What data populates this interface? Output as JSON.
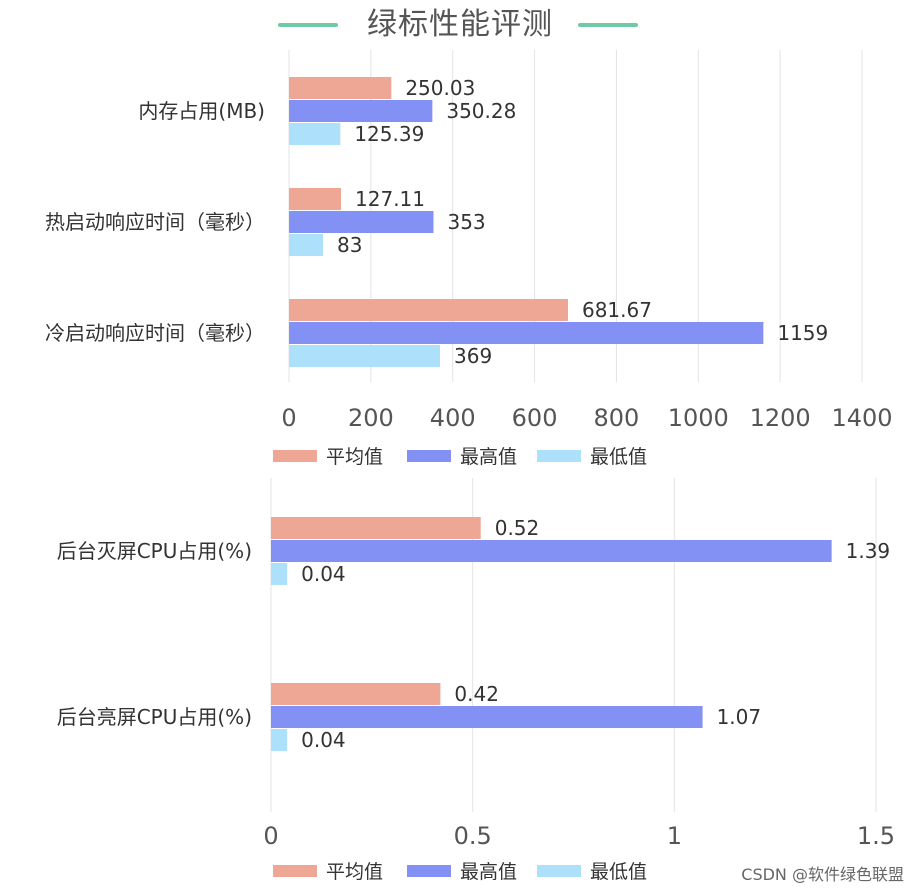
{
  "title": "绿标性能评测",
  "colors": {
    "title_accent": "#6fcaa6",
    "avg": "#efa795",
    "max": "#8390f4",
    "min": "#ade0fa",
    "grid": "#e3e3e3",
    "text": "#333333",
    "tick": "#555555"
  },
  "chart_data": [
    {
      "type": "bar",
      "orientation": "horizontal",
      "categories": [
        "内存占用(MB)",
        "热启动响应时间（毫秒）",
        "冷启动响应时间（毫秒）"
      ],
      "series": [
        {
          "name": "平均值",
          "values": [
            250.03,
            127.11,
            681.67
          ]
        },
        {
          "name": "最高值",
          "values": [
            350.28,
            353,
            1159
          ]
        },
        {
          "name": "最低值",
          "values": [
            125.39,
            83,
            369
          ]
        }
      ],
      "data_labels": [
        [
          "250.03",
          "127.11",
          "681.67"
        ],
        [
          "350.28",
          "353",
          "1159"
        ],
        [
          "125.39",
          "83",
          "369"
        ]
      ],
      "xlim": [
        0,
        1400
      ],
      "xticks": [
        "0",
        "200",
        "400",
        "600",
        "800",
        "1000",
        "1200",
        "1400"
      ],
      "grid": true,
      "legend": "bottom"
    },
    {
      "type": "bar",
      "orientation": "horizontal",
      "categories": [
        "后台灭屏CPU占用(%)",
        "后台亮屏CPU占用(%)"
      ],
      "series": [
        {
          "name": "平均值",
          "values": [
            0.52,
            0.42
          ]
        },
        {
          "name": "最高值",
          "values": [
            1.39,
            1.07
          ]
        },
        {
          "name": "最低值",
          "values": [
            0.04,
            0.04
          ]
        }
      ],
      "data_labels": [
        [
          "0.52",
          "0.42"
        ],
        [
          "1.39",
          "1.07"
        ],
        [
          "0.04",
          "0.04"
        ]
      ],
      "xlim": [
        0,
        1.5
      ],
      "xticks": [
        "0",
        "0.5",
        "1",
        "1.5"
      ],
      "grid": true,
      "legend": "bottom"
    }
  ],
  "watermark": "CSDN @软件绿色联盟"
}
